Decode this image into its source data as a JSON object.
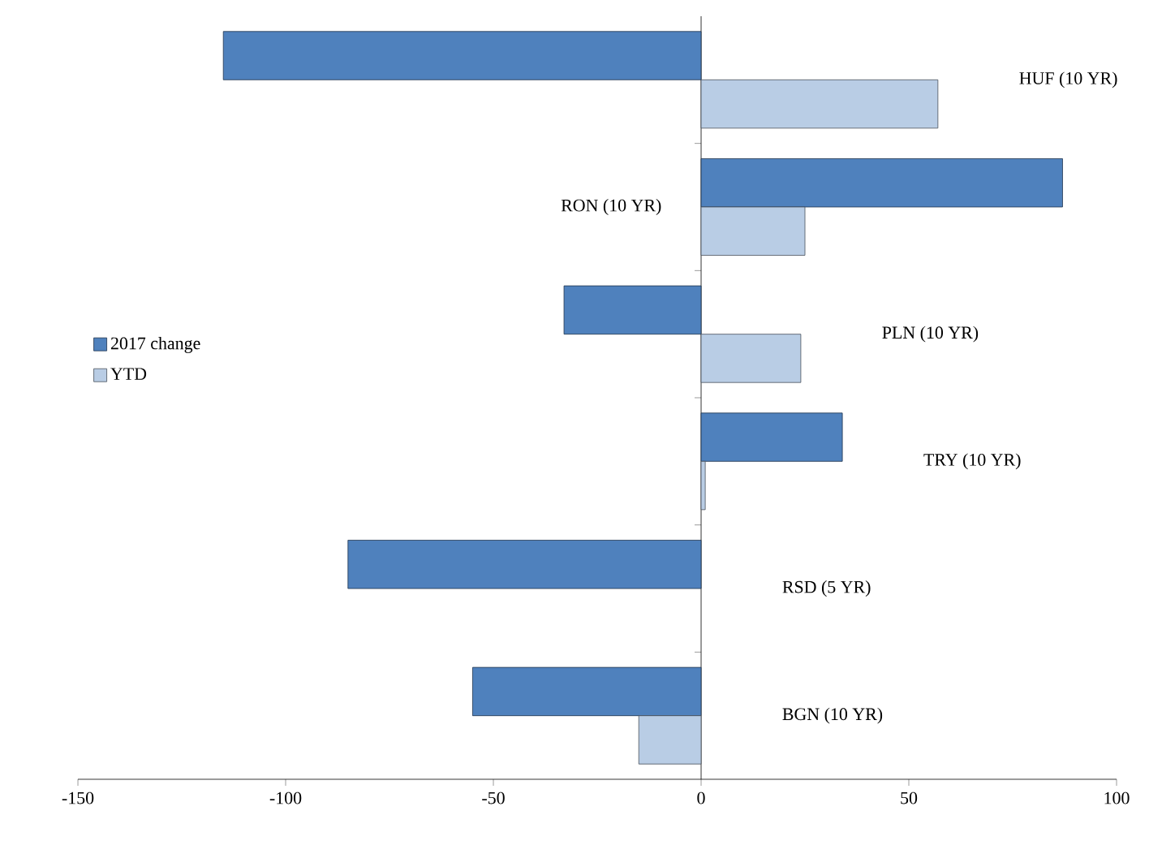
{
  "chart_data": {
    "type": "bar",
    "orientation": "horizontal",
    "categories": [
      "HUF (10 YR)",
      "RON (10 YR)",
      "PLN (10 YR)",
      "TRY (10 YR)",
      "RSD (5 YR)",
      "BGN (10 YR)"
    ],
    "series": [
      {
        "name": "2017 change",
        "color": "#4f81bd",
        "values": [
          -115,
          87,
          -33,
          34,
          -85,
          -55
        ]
      },
      {
        "name": "YTD",
        "color": "#b9cde5",
        "values": [
          57,
          25,
          24,
          1,
          null,
          -15
        ]
      }
    ],
    "xlim": [
      -150,
      100
    ],
    "xticks": [
      -150,
      -100,
      -50,
      0,
      50,
      100
    ],
    "legend": "left"
  }
}
